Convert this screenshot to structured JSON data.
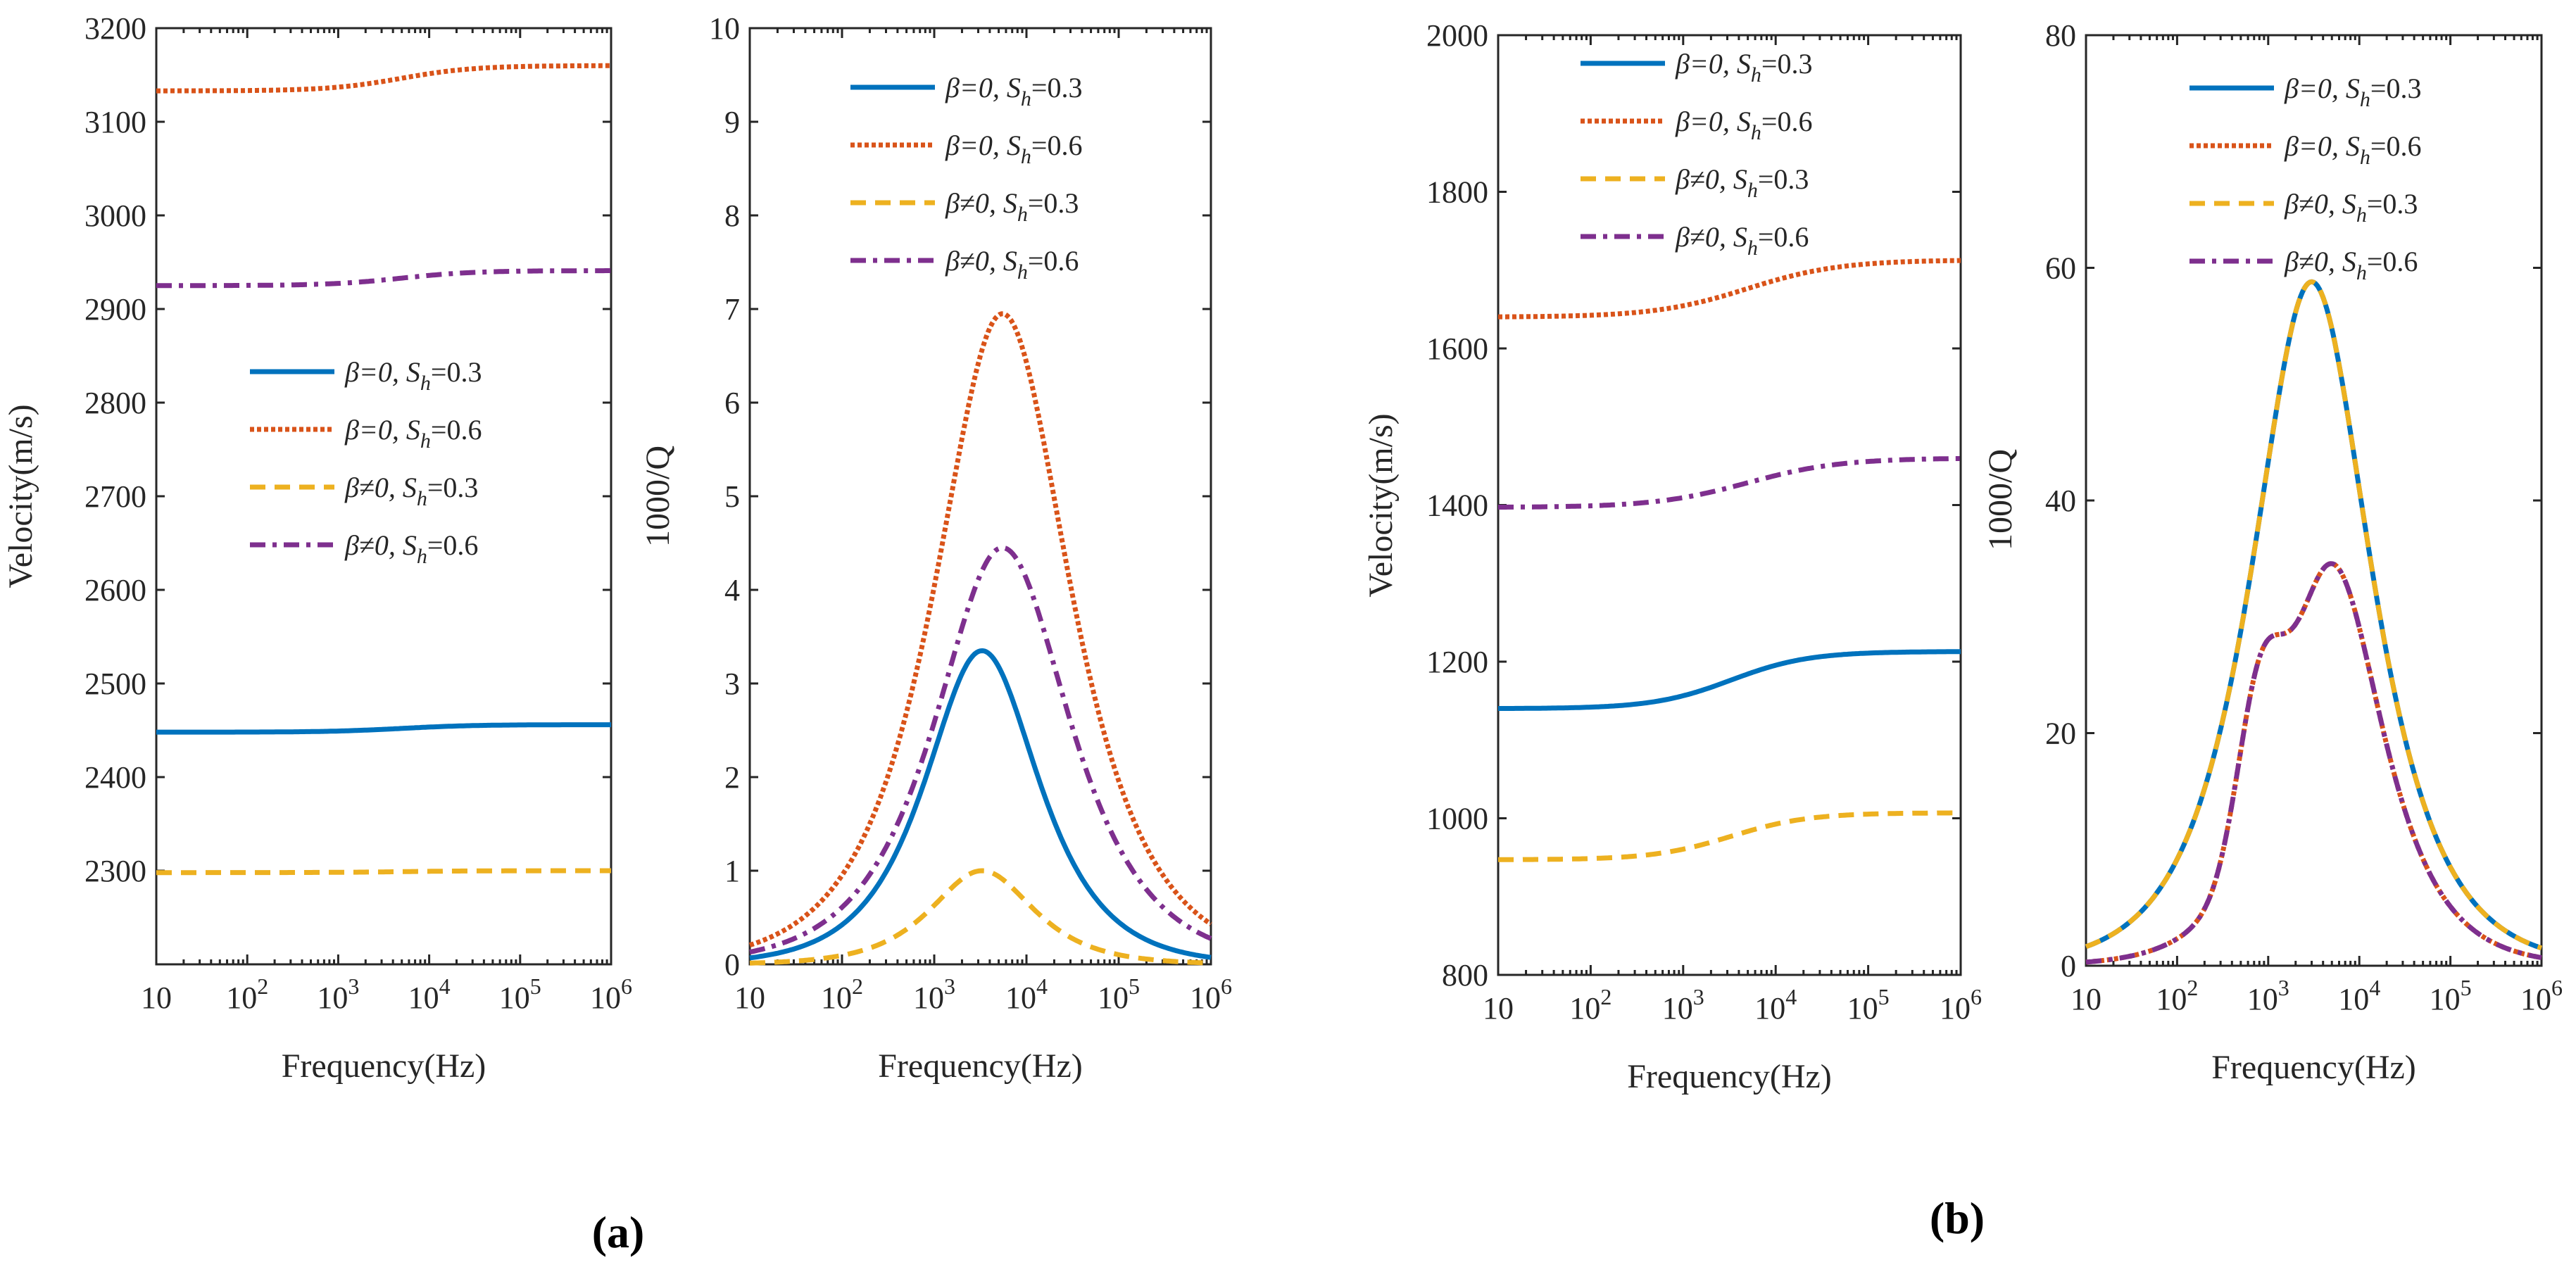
{
  "colors": {
    "blue": "#0072BD",
    "orange": "#D95319",
    "yellow": "#EDB120",
    "purple": "#7E2F8E"
  },
  "panel_labels": [
    "(a)",
    "(b)"
  ],
  "x_tick_labels": [
    {
      "base": "10",
      "exp": ""
    },
    {
      "base": "10",
      "exp": "2"
    },
    {
      "base": "10",
      "exp": "3"
    },
    {
      "base": "10",
      "exp": "4"
    },
    {
      "base": "10",
      "exp": "5"
    },
    {
      "base": "10",
      "exp": "6"
    }
  ],
  "legend_entries": [
    {
      "beta": "β=0, ",
      "s": "S",
      "sub": "h",
      "val": "=0.3",
      "style": "solid",
      "color": "blue"
    },
    {
      "beta": "β=0, ",
      "s": "S",
      "sub": "h",
      "val": "=0.6",
      "style": "dotted",
      "color": "orange"
    },
    {
      "beta": "β≠0, ",
      "s": "S",
      "sub": "h",
      "val": "=0.3",
      "style": "dashed",
      "color": "yellow"
    },
    {
      "beta": "β≠0, ",
      "s": "S",
      "sub": "h",
      "val": "=0.6",
      "style": "dashdot",
      "color": "purple"
    }
  ],
  "chart_data": [
    {
      "type": "line",
      "panel": "(a)",
      "xlabel": "Frequency(Hz)",
      "ylabel": "Velocity(m/s)",
      "xscale": "log",
      "xlim": [
        10,
        1000000
      ],
      "ylim": [
        2200,
        3200
      ],
      "yticks": [
        2300,
        2400,
        2500,
        2600,
        2700,
        2800,
        2900,
        3000,
        3100,
        3200
      ],
      "legend_position": "center",
      "series": [
        {
          "name": "β=0, Sh=0.3",
          "low": 2448,
          "high": 2456,
          "center": 5000,
          "width": 0.4
        },
        {
          "name": "β=0, Sh=0.6",
          "low": 3133,
          "high": 3160,
          "center": 5000,
          "width": 0.4
        },
        {
          "name": "β≠0, Sh=0.3",
          "low": 2298,
          "high": 2300,
          "center": 5000,
          "width": 0.4
        },
        {
          "name": "β≠0, Sh=0.6",
          "low": 2925,
          "high": 2941,
          "center": 5000,
          "width": 0.4
        }
      ]
    },
    {
      "type": "line",
      "panel": "(a)",
      "xlabel": "Frequency(Hz)",
      "ylabel": "1000/Q",
      "xscale": "log",
      "xlim": [
        10,
        1000000
      ],
      "ylim": [
        0,
        10
      ],
      "yticks": [
        0,
        1,
        2,
        3,
        4,
        5,
        6,
        7,
        8,
        9,
        10
      ],
      "legend_position": "top",
      "series": [
        {
          "name": "β=0, Sh=0.3",
          "peak": 3.35,
          "peak_freq": 3300,
          "sigma": 0.55,
          "shoulder": 0
        },
        {
          "name": "β=0, Sh=0.6",
          "peak": 6.95,
          "peak_freq": 5500,
          "sigma": 0.65,
          "shoulder": 0
        },
        {
          "name": "β≠0, Sh=0.3",
          "peak": 1.0,
          "peak_freq": 3300,
          "sigma": 0.5,
          "shoulder": 0
        },
        {
          "name": "β≠0, Sh=0.6",
          "peak": 4.45,
          "peak_freq": 5500,
          "sigma": 0.65,
          "shoulder": 0
        }
      ]
    },
    {
      "type": "line",
      "panel": "(b)",
      "xlabel": "Frequency(Hz)",
      "ylabel": "Velocity(m/s)",
      "xscale": "log",
      "xlim": [
        10,
        1000000
      ],
      "ylim": [
        800,
        2000
      ],
      "yticks": [
        800,
        1000,
        1200,
        1400,
        1600,
        1800,
        2000
      ],
      "legend_position": "top-left",
      "series": [
        {
          "name": "β=0, Sh=0.3",
          "low": 1140,
          "high": 1213,
          "center": 3300,
          "width": 0.42
        },
        {
          "name": "β=0, Sh=0.6",
          "low": 1640,
          "high": 1713,
          "center": 5000,
          "width": 0.5
        },
        {
          "name": "β≠0, Sh=0.3",
          "low": 947,
          "high": 1007,
          "center": 3300,
          "width": 0.42
        },
        {
          "name": "β≠0, Sh=0.6",
          "low": 1397,
          "high": 1460,
          "center": 5000,
          "width": 0.5
        }
      ]
    },
    {
      "type": "line",
      "panel": "(b)",
      "xlabel": "Frequency(Hz)",
      "ylabel": "1000/Q",
      "xscale": "log",
      "xlim": [
        10,
        1000000
      ],
      "ylim": [
        0,
        80
      ],
      "yticks": [
        0,
        20,
        40,
        60,
        80
      ],
      "legend_position": "top-right",
      "series": [
        {
          "name": "β=0, Sh=0.3",
          "peak": 58.8,
          "peak_freq": 3000,
          "sigma": 0.58,
          "shoulder": 0
        },
        {
          "name": "β=0, Sh=0.6",
          "peak": 34.5,
          "peak_freq": 5000,
          "sigma": 0.5,
          "shoulder": 13
        },
        {
          "name": "β≠0, Sh=0.3",
          "peak": 58.8,
          "peak_freq": 3000,
          "sigma": 0.58,
          "shoulder": 0
        },
        {
          "name": "β≠0, Sh=0.6",
          "peak": 34.5,
          "peak_freq": 5000,
          "sigma": 0.5,
          "shoulder": 13
        }
      ]
    }
  ]
}
